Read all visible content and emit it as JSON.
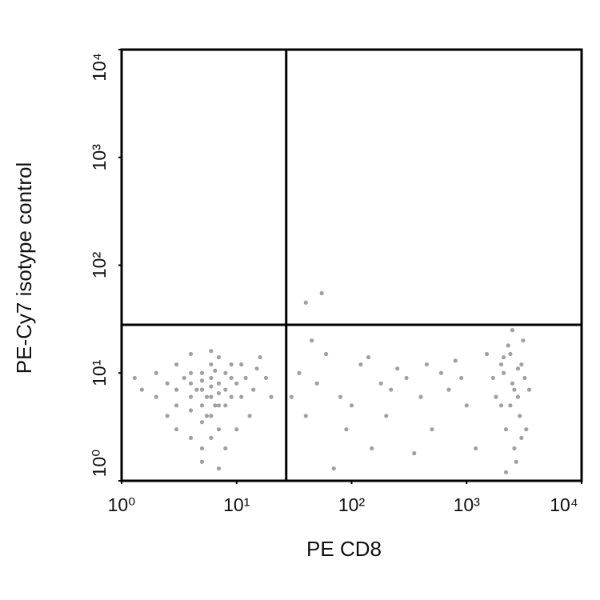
{
  "chart_data": {
    "type": "scatter",
    "xlabel": "PE CD8",
    "ylabel": "PE-Cy7 isotype control",
    "xscale": "log",
    "yscale": "log",
    "color": "#808080",
    "xlim": [
      1,
      10000
    ],
    "ylim": [
      1,
      10000
    ],
    "xticks": [
      {
        "value": 1,
        "label": "10⁰"
      },
      {
        "value": 10,
        "label": "10¹"
      },
      {
        "value": 100,
        "label": "10²"
      },
      {
        "value": 1000,
        "label": "10³"
      },
      {
        "value": 10000,
        "label": "10⁴"
      }
    ],
    "yticks": [
      {
        "value": 1,
        "label": "10⁰"
      },
      {
        "value": 10,
        "label": "10¹"
      },
      {
        "value": 100,
        "label": "10²"
      },
      {
        "value": 1000,
        "label": "10³"
      },
      {
        "value": 10000,
        "label": "10⁴"
      }
    ],
    "gates": {
      "x": 27,
      "y": 28
    },
    "x": [
      5,
      6,
      4,
      7,
      5,
      6,
      8,
      4,
      5,
      7,
      6,
      3,
      9,
      5,
      6,
      4,
      8,
      7,
      3.5,
      10,
      6,
      5.5,
      4.5,
      7,
      6.5,
      5,
      8,
      4,
      3,
      9,
      6,
      5,
      7,
      11,
      12,
      2.5,
      2,
      3,
      14,
      15,
      4,
      6,
      8,
      10,
      2,
      1.5,
      1.3,
      13,
      5,
      7,
      18,
      20,
      16,
      9,
      3,
      2.5,
      4,
      11,
      6.5,
      5.5,
      2000,
      2500,
      3000,
      2200,
      2800,
      2400,
      3200,
      2600,
      2100,
      2900,
      2300,
      3500,
      2700,
      2000,
      3100,
      2500,
      2200,
      2800,
      3300,
      1800,
      2400,
      2600,
      3000,
      2100,
      1700,
      35,
      50,
      80,
      120,
      200,
      300,
      500,
      700,
      1000,
      40,
      60,
      150,
      250,
      400,
      800,
      1200,
      45,
      90,
      180,
      600,
      30,
      70,
      350,
      900,
      1500,
      40,
      55,
      100,
      140,
      220,
      450
    ],
    "values": [
      7,
      6,
      8,
      5,
      5,
      9,
      7,
      6,
      10,
      8,
      4,
      7,
      6,
      3.5,
      12,
      4.5,
      10,
      3,
      9,
      8,
      7.5,
      6,
      7,
      6.5,
      5,
      8.5,
      5,
      10,
      5,
      9,
      2.5,
      2,
      14,
      6,
      9,
      8,
      6,
      12,
      7,
      11,
      15,
      16,
      2,
      3,
      10,
      7,
      9,
      4,
      1.5,
      1.3,
      9,
      6,
      14,
      12,
      3,
      4,
      2.5,
      12,
      10.5,
      4,
      5,
      8,
      12,
      3,
      6,
      15,
      9,
      2,
      10,
      4,
      18,
      7,
      1.5,
      12,
      20,
      25,
      1.2,
      11,
      3,
      6,
      5,
      7,
      2.5,
      14,
      9,
      10,
      8,
      6,
      12,
      4,
      9,
      3,
      7,
      5,
      4,
      15,
      2,
      11,
      6,
      13,
      2,
      20,
      3,
      8,
      10,
      6,
      1.3,
      1.8,
      9,
      15,
      45,
      55,
      5,
      14,
      7,
      12
    ]
  }
}
